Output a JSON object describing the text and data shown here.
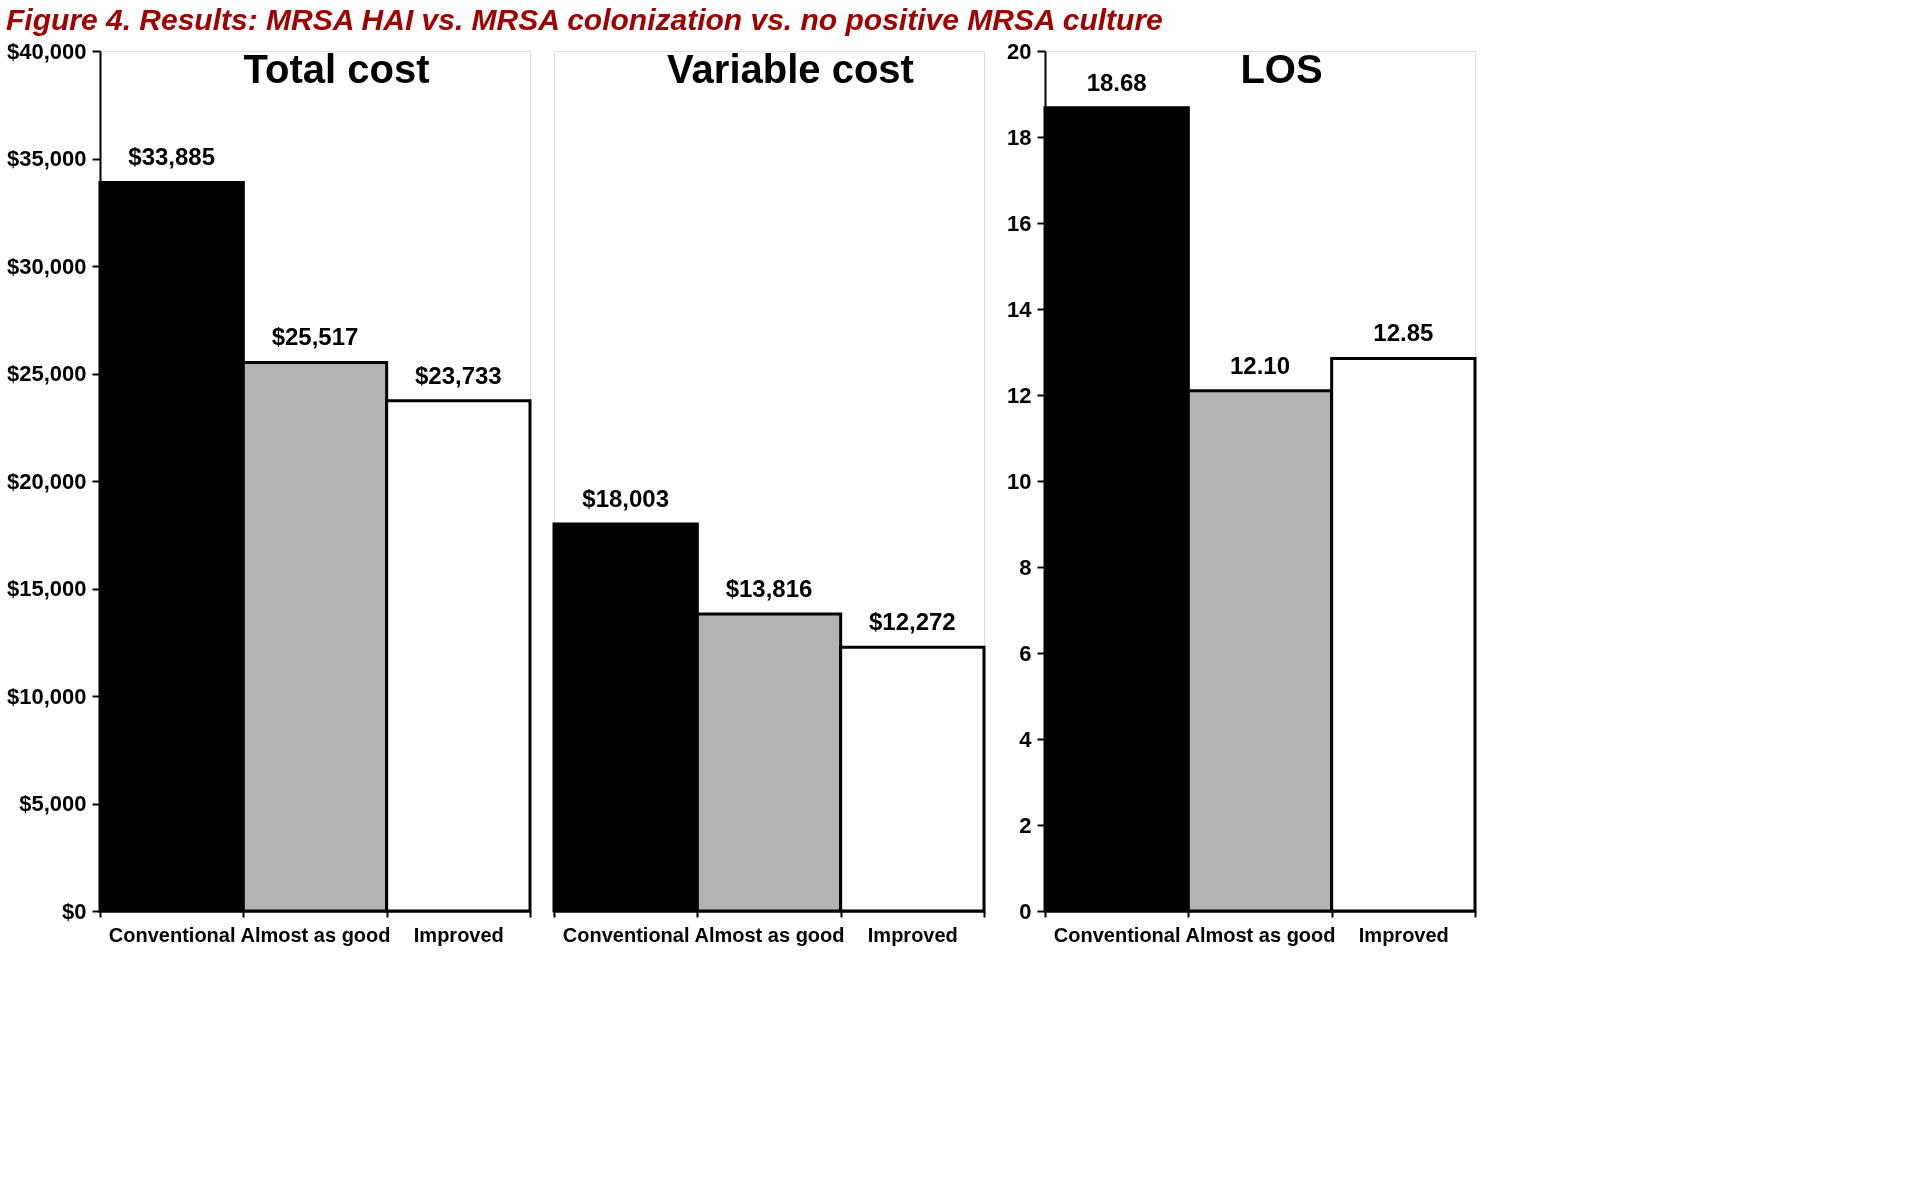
{
  "chart_data": [
    {
      "type": "bar",
      "title": "Total cost",
      "annotations": [
        "Figure 4. Results: MRSA HAI vs. MRSA colonization vs. no positive MRSA culture"
      ],
      "categories": [
        "Conventional",
        "Almost as good",
        "Improved"
      ],
      "values": [
        33885,
        25517,
        23733
      ],
      "colors": [
        "#000000",
        "#b3b3b3",
        "#ffffff"
      ],
      "value_labels": [
        "$33,885",
        "$25,517",
        "$23,733"
      ],
      "ylim": [
        0,
        40000
      ],
      "yticks": [
        {
          "value": 0,
          "label": "$0"
        },
        {
          "value": 5000,
          "label": "$5,000"
        },
        {
          "value": 10000,
          "label": "$10,000"
        },
        {
          "value": 15000,
          "label": "$15,000"
        },
        {
          "value": 20000,
          "label": "$20,000"
        },
        {
          "value": 25000,
          "label": "$25,000"
        },
        {
          "value": 30000,
          "label": "$30,000"
        },
        {
          "value": 35000,
          "label": "$35,000"
        },
        {
          "value": 40000,
          "label": "$40,000"
        }
      ]
    },
    {
      "type": "bar",
      "title": "Variable cost",
      "categories": [
        "Conventional",
        "Almost as good",
        "Improved"
      ],
      "values": [
        18003,
        13816,
        12272
      ],
      "colors": [
        "#000000",
        "#b3b3b3",
        "#ffffff"
      ],
      "value_labels": [
        "$18,003",
        "$13,816",
        "$12,272"
      ],
      "ylim": [
        0,
        40000
      ],
      "tick_labels": "x"
    },
    {
      "type": "bar",
      "title": "LOS",
      "categories": [
        "Conventional",
        "Almost as good",
        "Improved"
      ],
      "values": [
        18.68,
        12.1,
        12.85
      ],
      "colors": [
        "#000000",
        "#b3b3b3",
        "#ffffff"
      ],
      "value_labels": [
        "18.68",
        "12.10",
        "12.85"
      ],
      "ylim": [
        0,
        20
      ],
      "yticks": [
        0,
        2,
        4,
        6,
        8,
        10,
        12,
        14,
        16,
        18,
        20
      ]
    }
  ]
}
